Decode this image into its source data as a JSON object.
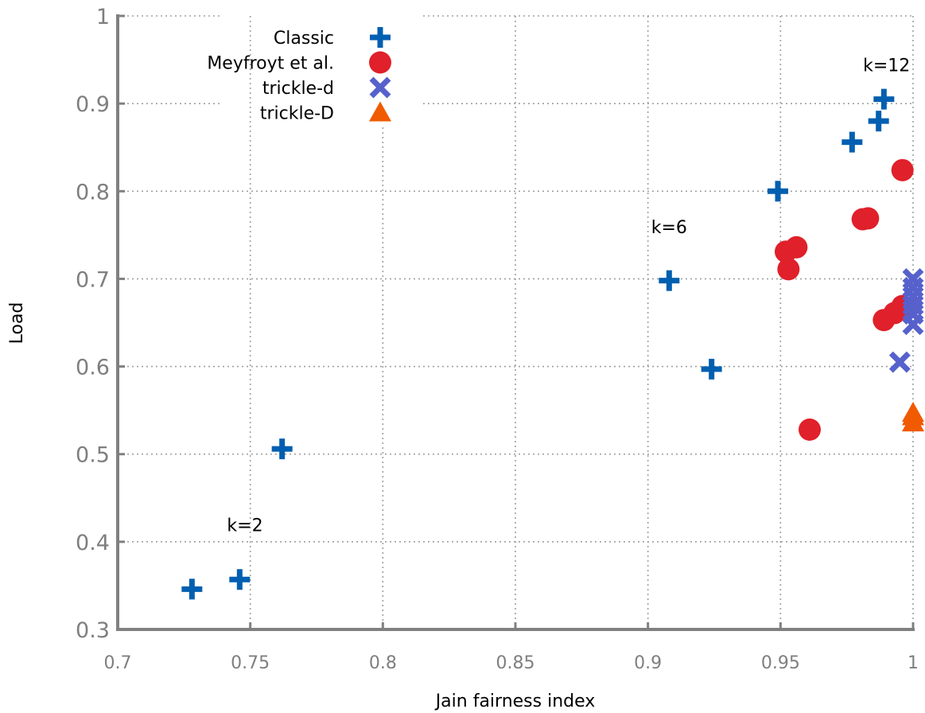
{
  "chart_data": {
    "type": "scatter",
    "title": "",
    "xlabel": "Jain fairness index",
    "ylabel": "Load",
    "xlim": [
      0.7,
      1.0
    ],
    "ylim": [
      0.3,
      1.0
    ],
    "x_ticks": [
      "0.7",
      "0.75",
      "0.8",
      "0.85",
      "0.9",
      "0.95",
      "1"
    ],
    "y_ticks": [
      "0.3",
      "0.4",
      "0.5",
      "0.6",
      "0.7",
      "0.8",
      "0.9",
      "1"
    ],
    "x_tick_values": [
      0.7,
      0.75,
      0.8,
      0.85,
      0.9,
      0.95,
      1.0
    ],
    "y_tick_values": [
      0.3,
      0.4,
      0.5,
      0.6,
      0.7,
      0.8,
      0.9,
      1.0
    ],
    "grid": true,
    "legend_position": "top-left",
    "series": [
      {
        "name": "Classic",
        "marker": "plus",
        "color": "#005fb0",
        "points": [
          [
            0.728,
            0.346
          ],
          [
            0.746,
            0.357
          ],
          [
            0.762,
            0.506
          ],
          [
            0.908,
            0.698
          ],
          [
            0.924,
            0.597
          ],
          [
            0.949,
            0.8
          ],
          [
            0.977,
            0.856
          ],
          [
            0.987,
            0.88
          ],
          [
            0.989,
            0.905
          ]
        ]
      },
      {
        "name": "Meyfroyt et al.",
        "marker": "circle",
        "color": "#e0202a",
        "points": [
          [
            0.961,
            0.528
          ],
          [
            0.952,
            0.731
          ],
          [
            0.953,
            0.711
          ],
          [
            0.956,
            0.736
          ],
          [
            0.981,
            0.768
          ],
          [
            0.983,
            0.769
          ],
          [
            0.996,
            0.824
          ],
          [
            0.989,
            0.653
          ],
          [
            0.993,
            0.661
          ],
          [
            0.996,
            0.669
          ],
          [
            0.998,
            0.667
          ]
        ]
      },
      {
        "name": "trickle-d",
        "marker": "x",
        "color": "#5661cc",
        "points": [
          [
            0.995,
            0.605
          ],
          [
            1.0,
            0.648
          ],
          [
            1.0,
            0.66
          ],
          [
            1.0,
            0.67
          ],
          [
            1.0,
            0.68
          ],
          [
            1.0,
            0.69
          ],
          [
            1.0,
            0.7
          ]
        ]
      },
      {
        "name": "trickle-D",
        "marker": "triangle",
        "color": "#f05a00",
        "points": [
          [
            1.0,
            0.536
          ],
          [
            1.0,
            0.543
          ],
          [
            1.0,
            0.547
          ]
        ]
      }
    ],
    "annotations": [
      {
        "text": "k=2",
        "x": 0.748,
        "y": 0.412
      },
      {
        "text": "k=6",
        "x": 0.908,
        "y": 0.752
      },
      {
        "text": "k=12",
        "x": 0.99,
        "y": 0.937
      }
    ]
  }
}
